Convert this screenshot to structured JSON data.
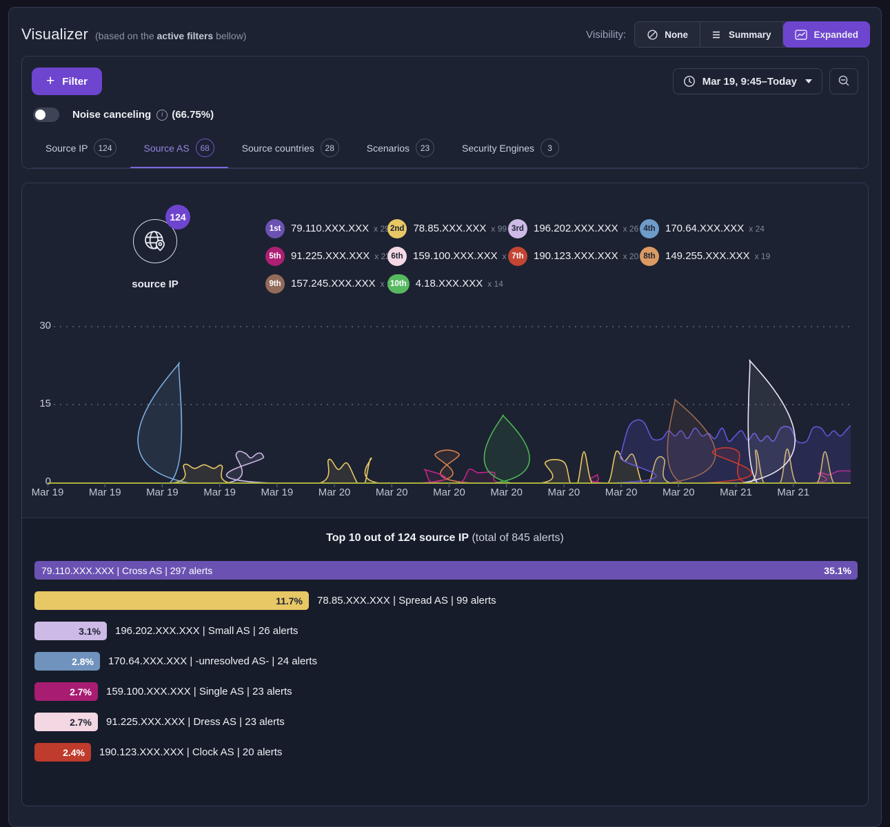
{
  "header": {
    "title": "Visualizer",
    "subtitle_prefix": "(based on the ",
    "subtitle_bold": "active filters",
    "subtitle_suffix": " bellow)",
    "visibility_label": "Visibility:",
    "visibility_options": [
      {
        "label": "None",
        "icon": "slash-circle-icon",
        "active": false
      },
      {
        "label": "Summary",
        "icon": "list-icon",
        "active": false
      },
      {
        "label": "Expanded",
        "icon": "line-chart-icon",
        "active": true
      }
    ]
  },
  "filter_panel": {
    "filter_button_label": "Filter",
    "date_range_label": "Mar 19, 9:45–Today",
    "noise_canceling": {
      "label": "Noise canceling",
      "value": "(66.75%)"
    },
    "tabs": [
      {
        "label": "Source IP",
        "count": "124",
        "active": false
      },
      {
        "label": "Source AS",
        "count": "68",
        "active": true
      },
      {
        "label": "Source countries",
        "count": "28",
        "active": false
      },
      {
        "label": "Scenarios",
        "count": "23",
        "active": false
      },
      {
        "label": "Security Engines",
        "count": "3",
        "active": false
      }
    ]
  },
  "summary": {
    "entity_label": "source IP",
    "entity_badge": "124",
    "top_list": [
      {
        "rank": "1st",
        "ip": "79.110.XXX.XXX",
        "count": "x 297",
        "color": "#6b52b2",
        "text": "light"
      },
      {
        "rank": "2nd",
        "ip": "78.85.XXX.XXX",
        "count": "x 99",
        "color": "#e8c765",
        "text": "dark"
      },
      {
        "rank": "3rd",
        "ip": "196.202.XXX.XXX",
        "count": "x 26",
        "color": "#cdbae6",
        "text": "dark"
      },
      {
        "rank": "4th",
        "ip": "170.64.XXX.XXX",
        "count": "x 24",
        "color": "#6f9bc9",
        "text": "dark"
      },
      {
        "rank": "5th",
        "ip": "91.225.XXX.XXX",
        "count": "x 23",
        "color": "#ad2073",
        "text": "light"
      },
      {
        "rank": "6th",
        "ip": "159.100.XXX.XXX",
        "count": "x 23",
        "color": "#f3d7e3",
        "text": "dark"
      },
      {
        "rank": "7th",
        "ip": "190.123.XXX.XXX",
        "count": "x 20",
        "color": "#c44532",
        "text": "light"
      },
      {
        "rank": "8th",
        "ip": "149.255.XXX.XXX",
        "count": "x 19",
        "color": "#dc9a63",
        "text": "dark"
      },
      {
        "rank": "9th",
        "ip": "157.245.XXX.XXX",
        "count": "x 16",
        "color": "#936b5b",
        "text": "light"
      },
      {
        "rank": "10th",
        "ip": "4.18.XXX.XXX",
        "count": "x 14",
        "color": "#57b85f",
        "text": "light"
      }
    ]
  },
  "chart_data": [
    {
      "type": "area",
      "title": "alerts over time",
      "ylim": [
        0,
        30
      ],
      "yticks": [
        0,
        15,
        30
      ],
      "grid": "horizontal-dotted",
      "axis_color": "#a9b23c",
      "x_labels": [
        "Mar 19",
        "Mar 19",
        "Mar 19",
        "Mar 19",
        "Mar 19",
        "Mar 20",
        "Mar 20",
        "Mar 20",
        "Mar 20",
        "Mar 20",
        "Mar 20",
        "Mar 20",
        "Mar 21",
        "Mar 21"
      ],
      "series": [
        {
          "name": "lavender",
          "color": "#cdbae6",
          "fill_opacity": 0.1,
          "points": [
            [
              0,
              0
            ],
            [
              22.2,
              0
            ],
            [
              23.5,
              5.6
            ],
            [
              24.6,
              5.7
            ],
            [
              25.3,
              4.8
            ],
            [
              26.2,
              5.7
            ],
            [
              26.9,
              5.0
            ],
            [
              27.9,
              0
            ],
            [
              100,
              0
            ]
          ]
        },
        {
          "name": "light-blue",
          "color": "#7badde",
          "fill_opacity": 0.1,
          "points": [
            [
              0,
              0
            ],
            [
              15.2,
              0
            ],
            [
              16.4,
              23
            ],
            [
              17.7,
              0
            ],
            [
              100,
              0
            ]
          ]
        },
        {
          "name": "orange",
          "color": "#d8824d",
          "fill_opacity": 0.1,
          "points": [
            [
              0,
              0
            ],
            [
              46.6,
              0
            ],
            [
              48.3,
              5.6
            ],
            [
              51.2,
              5.6
            ],
            [
              52.8,
              0
            ],
            [
              100,
              0
            ]
          ]
        },
        {
          "name": "magenta",
          "color": "#c4258c",
          "fill_opacity": 0.1,
          "points": [
            [
              0,
              0
            ],
            [
              45.9,
              0
            ],
            [
              46.9,
              2.6
            ],
            [
              47.9,
              0
            ],
            [
              51.3,
              0
            ],
            [
              52.5,
              2.6
            ],
            [
              53.6,
              2.0
            ],
            [
              55.6,
              2.0
            ],
            [
              56.6,
              0
            ],
            [
              67.5,
              0
            ],
            [
              68.5,
              1.6
            ],
            [
              69.8,
              0
            ],
            [
              94.8,
              0
            ],
            [
              96.0,
              1.9
            ],
            [
              97.3,
              1.6
            ],
            [
              98.5,
              2.3
            ],
            [
              100,
              2.3
            ]
          ]
        },
        {
          "name": "green",
          "color": "#4fb254",
          "fill_opacity": 0.12,
          "points": [
            [
              0,
              0
            ],
            [
              55.6,
              0
            ],
            [
              56.7,
              13
            ],
            [
              57.8,
              0
            ],
            [
              100,
              0
            ]
          ]
        },
        {
          "name": "yellow",
          "color": "#e8c765",
          "fill_opacity": 0.1,
          "points": [
            [
              0,
              0
            ],
            [
              15.5,
              0
            ],
            [
              17.0,
              3.5
            ],
            [
              18.3,
              2.8
            ],
            [
              19.5,
              3.5
            ],
            [
              20.7,
              2.8
            ],
            [
              21.7,
              3.3
            ],
            [
              22.8,
              0
            ],
            [
              33.8,
              0
            ],
            [
              35.0,
              4.5
            ],
            [
              36.2,
              2.6
            ],
            [
              37.3,
              3.8
            ],
            [
              38.6,
              0
            ],
            [
              39.5,
              0
            ],
            [
              40.3,
              4.8
            ],
            [
              41.3,
              0
            ],
            [
              61.3,
              0
            ],
            [
              62.0,
              4.0
            ],
            [
              64.3,
              4.0
            ],
            [
              65.1,
              0
            ],
            [
              66.0,
              0
            ],
            [
              66.8,
              6.0
            ],
            [
              67.8,
              0
            ],
            [
              69.8,
              0
            ],
            [
              70.8,
              6.0
            ],
            [
              71.8,
              4.2
            ],
            [
              72.9,
              5.4
            ],
            [
              74.0,
              0
            ],
            [
              74.9,
              0
            ],
            [
              75.8,
              4.5
            ],
            [
              76.8,
              4.5
            ],
            [
              77.6,
              0
            ],
            [
              87.3,
              0
            ],
            [
              88.2,
              6.3
            ],
            [
              89.2,
              0
            ],
            [
              91.2,
              0
            ],
            [
              92.1,
              6.5
            ],
            [
              93.2,
              0
            ],
            [
              95.8,
              0
            ],
            [
              96.8,
              6.0
            ],
            [
              97.9,
              0
            ],
            [
              100,
              0
            ]
          ]
        },
        {
          "name": "indigo",
          "color": "#6356d8",
          "fill_opacity": 0.18,
          "points": [
            [
              0,
              0
            ],
            [
              70.3,
              0
            ],
            [
              71.3,
              5
            ],
            [
              72.3,
              10.5
            ],
            [
              73.3,
              12
            ],
            [
              74.3,
              11.5
            ],
            [
              75.3,
              8.5
            ],
            [
              76.5,
              8.5
            ],
            [
              77.3,
              10
            ],
            [
              78.1,
              9
            ],
            [
              78.9,
              10
            ],
            [
              79.7,
              8.5
            ],
            [
              80.6,
              10.5
            ],
            [
              81.5,
              9
            ],
            [
              82.3,
              9.5
            ],
            [
              83.1,
              8.5
            ],
            [
              84.0,
              10.5
            ],
            [
              84.8,
              8
            ],
            [
              85.6,
              9
            ],
            [
              86.4,
              10
            ],
            [
              87.2,
              8.2
            ],
            [
              88.0,
              9.5
            ],
            [
              88.8,
              8
            ],
            [
              89.6,
              9
            ],
            [
              90.4,
              8
            ],
            [
              91.3,
              10.5
            ],
            [
              92.5,
              10.5
            ],
            [
              93.3,
              8
            ],
            [
              94.5,
              8
            ],
            [
              95.3,
              10.5
            ],
            [
              96.3,
              10.5
            ],
            [
              97.1,
              9
            ],
            [
              97.9,
              10
            ],
            [
              98.7,
              9
            ],
            [
              99.5,
              10.2
            ],
            [
              100,
              11
            ]
          ]
        },
        {
          "name": "brown",
          "color": "#9a6a52",
          "fill_opacity": 0.12,
          "points": [
            [
              0,
              0
            ],
            [
              77.2,
              0
            ],
            [
              78.1,
              16
            ],
            [
              79.0,
              0
            ],
            [
              100,
              0
            ]
          ]
        },
        {
          "name": "red",
          "color": "#cc3a2e",
          "fill_opacity": 0.12,
          "points": [
            [
              0,
              0
            ],
            [
              81.3,
              0
            ],
            [
              82.8,
              6
            ],
            [
              86.0,
              6
            ],
            [
              87.1,
              0
            ],
            [
              100,
              0
            ]
          ]
        },
        {
          "name": "white",
          "color": "#ece6f4",
          "fill_opacity": 0.08,
          "points": [
            [
              0,
              0
            ],
            [
              86.4,
              0
            ],
            [
              87.4,
              23.5
            ],
            [
              88.4,
              0
            ],
            [
              100,
              0
            ]
          ]
        }
      ]
    },
    {
      "type": "bar",
      "title_bold": "Top 10 out of 124 source IP",
      "title_rest": " (total of 845 alerts)",
      "max_pct": 35.1,
      "items": [
        {
          "ip": "79.110.XXX.XXX",
          "as_name": "Cross AS",
          "alerts": 297,
          "pct": 35.1,
          "color": "#6b52b2",
          "text": "light",
          "label_inside": true
        },
        {
          "ip": "78.85.XXX.XXX",
          "as_name": "Spread AS",
          "alerts": 99,
          "pct": 11.7,
          "color": "#e8c765",
          "text": "dark"
        },
        {
          "ip": "196.202.XXX.XXX",
          "as_name": "Small AS",
          "alerts": 26,
          "pct": 3.1,
          "color": "#cdbae6",
          "text": "dark"
        },
        {
          "ip": "170.64.XXX.XXX",
          "as_name": "-unresolved AS-",
          "alerts": 24,
          "pct": 2.8,
          "color": "#6f93bd",
          "text": "light"
        },
        {
          "ip": "159.100.XXX.XXX",
          "as_name": "Single AS",
          "alerts": 23,
          "pct": 2.7,
          "color": "#a81c72",
          "text": "light"
        },
        {
          "ip": "91.225.XXX.XXX",
          "as_name": "Dress AS",
          "alerts": 23,
          "pct": 2.7,
          "color": "#f3d7e3",
          "text": "dark"
        },
        {
          "ip": "190.123.XXX.XXX",
          "as_name": "Clock AS",
          "alerts": 20,
          "pct": 2.4,
          "color": "#bf3b2c",
          "text": "light"
        }
      ]
    }
  ]
}
